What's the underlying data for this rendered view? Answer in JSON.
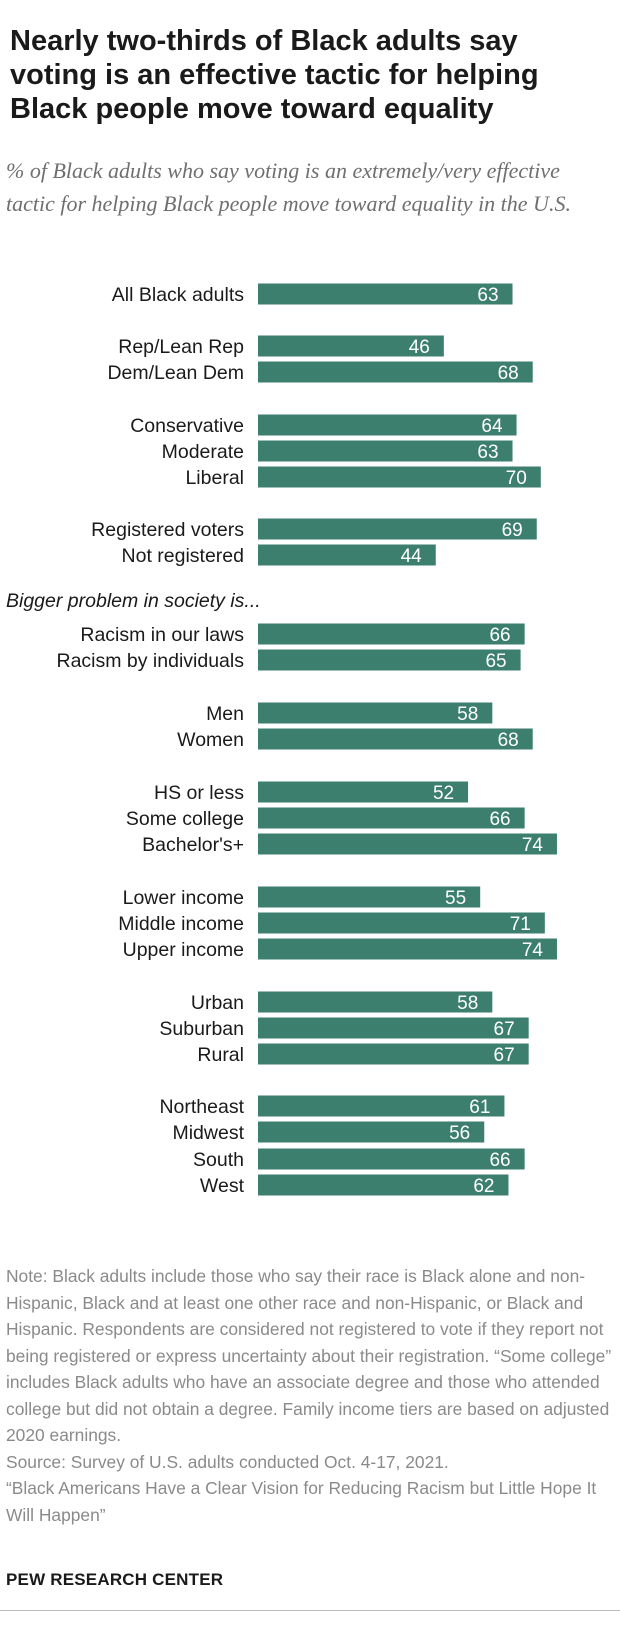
{
  "title": "Nearly two-thirds of Black adults say voting is an effective tactic for helping Black people move toward equality",
  "subtitle": "% of Black adults who say voting is an extremely/very effective tactic for helping Black people move toward equality in the U.S.",
  "chart_data": {
    "type": "bar",
    "orientation": "horizontal",
    "bar_color": "#3d7f6f",
    "value_label_color": "#ffffff",
    "xlim": [
      0,
      100
    ],
    "section_label": "Bigger problem in society is...",
    "categories": [
      "All Black adults",
      "Rep/Lean Rep",
      "Dem/Lean Dem",
      "Conservative",
      "Moderate",
      "Liberal",
      "Registered voters",
      "Not registered",
      "Racism in our laws",
      "Racism by individuals",
      "Men",
      "Women",
      "HS or less",
      "Some college",
      "Bachelor's+",
      "Lower income",
      "Middle income",
      "Upper income",
      "Urban",
      "Suburban",
      "Rural",
      "Northeast",
      "Midwest",
      "South",
      "West"
    ],
    "values": [
      63,
      46,
      68,
      64,
      63,
      70,
      69,
      44,
      66,
      65,
      58,
      68,
      52,
      66,
      74,
      55,
      71,
      74,
      58,
      67,
      67,
      61,
      56,
      66,
      62
    ]
  },
  "note": "Note: Black adults include those who say their race is Black alone and non-Hispanic, Black and at least one other race and non-Hispanic, or Black and Hispanic. Respondents are considered not registered to vote if they report not being registered or express uncertainty about their registration. “Some college” includes Black adults who have an associate degree and those who attended college but did not obtain a degree. Family income tiers are based on adjusted 2020 earnings.",
  "source": "Source: Survey of U.S. adults conducted Oct. 4-17, 2021.",
  "report_title": "“Black Americans Have a Clear Vision for Reducing Racism but Little Hope It Will Happen”",
  "brand": "PEW RESEARCH CENTER"
}
